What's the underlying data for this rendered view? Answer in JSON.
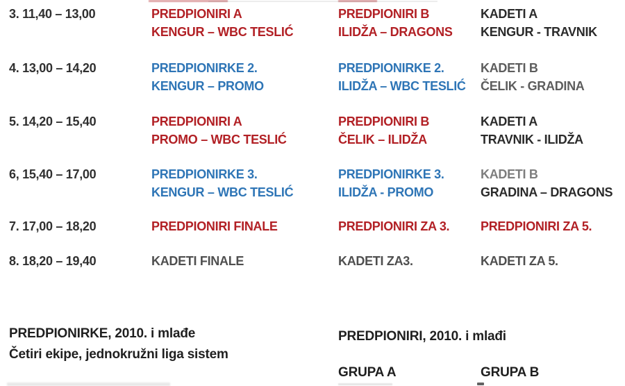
{
  "colors": {
    "red": "#b22025",
    "blue": "#2e75b6",
    "black": "#2b2b2b",
    "gray": "#5d5d5d",
    "lightgray": "#7d7d7d",
    "darkgray": "#4f4f4f"
  },
  "schedule": {
    "rows": [
      {
        "time": "3. 11,40 – 13,00",
        "cells": [
          {
            "lines": [
              {
                "text": "PREDPIONIRI A",
                "color": "red"
              },
              {
                "text": "KENGUR – WBC TESLIĆ",
                "color": "red"
              }
            ]
          },
          {
            "lines": [
              {
                "text": "PREDPIONIRI B",
                "color": "red"
              },
              {
                "text": "ILIDŽA – DRAGONS",
                "color": "red"
              }
            ]
          },
          {
            "lines": [
              {
                "text": "KADETI A",
                "color": "black"
              },
              {
                "text": "KENGUR - TRAVNIK",
                "color": "black"
              }
            ]
          }
        ]
      },
      {
        "time": "4. 13,00 – 14,20",
        "cells": [
          {
            "lines": [
              {
                "text": "PREDPIONIRKE 2.",
                "color": "blue"
              },
              {
                "text": "KENGUR – PROMO",
                "color": "blue"
              }
            ]
          },
          {
            "lines": [
              {
                "text": "PREDPIONIRKE 2.",
                "color": "blue"
              },
              {
                "text": "ILIDŽA – WBC TESLIĆ",
                "color": "blue"
              }
            ]
          },
          {
            "lines": [
              {
                "text": "KADETI B",
                "color": "gray"
              },
              {
                "text": "ČELIK - GRADINA",
                "color": "gray"
              }
            ]
          }
        ]
      },
      {
        "time": "5. 14,20 – 15,40",
        "cells": [
          {
            "lines": [
              {
                "text": "PREDPIONIRI A",
                "color": "red"
              },
              {
                "text": "PROMO – WBC TESLIĆ",
                "color": "red"
              }
            ]
          },
          {
            "lines": [
              {
                "text": "PREDPIONIRI B",
                "color": "red"
              },
              {
                "text": "ČELIK – ILIDŽA",
                "color": "red"
              }
            ]
          },
          {
            "lines": [
              {
                "text": "KADETI A",
                "color": "black"
              },
              {
                "text": "TRAVNIK - ILIDŽA",
                "color": "black"
              }
            ]
          }
        ]
      },
      {
        "time": "6, 15,40 – 17,00",
        "cells": [
          {
            "lines": [
              {
                "text": "PREDPIONIRKE 3.",
                "color": "blue"
              },
              {
                "text": "KENGUR – WBC TESLIĆ",
                "color": "blue"
              }
            ]
          },
          {
            "lines": [
              {
                "text": "PREDPIONIRKE 3.",
                "color": "blue"
              },
              {
                "text": "ILIDŽA - PROMO",
                "color": "blue"
              }
            ]
          },
          {
            "lines": [
              {
                "text": "KADETI B",
                "color": "lightgray"
              },
              {
                "text": "GRADINA – DRAGONS",
                "color": "black"
              }
            ]
          }
        ]
      },
      {
        "time": "7. 17,00 – 18,20",
        "cells": [
          {
            "lines": [
              {
                "text": "PREDPIONIRI FINALE",
                "color": "red"
              }
            ]
          },
          {
            "lines": [
              {
                "text": "PREDPIONIRI ZA 3.",
                "color": "red"
              }
            ]
          },
          {
            "lines": [
              {
                "text": "PREDPIONIRI ZA 5.",
                "color": "red"
              }
            ]
          }
        ]
      },
      {
        "time": "8. 18,20 – 19,40",
        "cells": [
          {
            "lines": [
              {
                "text": "KADETI FINALE",
                "color": "darkgray"
              }
            ]
          },
          {
            "lines": [
              {
                "text": "KADETI ZA3.",
                "color": "darkgray"
              }
            ]
          },
          {
            "lines": [
              {
                "text": "KADETI ZA 5.",
                "color": "darkgray"
              }
            ]
          }
        ]
      }
    ]
  },
  "footer": {
    "left": {
      "title": "PREDPIONIRKE, 2010. i mlađe",
      "subtitle": "Četiri ekipe, jednokružni liga sistem"
    },
    "right": {
      "title": "PREDPIONIRI, 2010. i mlađi",
      "group_a": "GRUPA A",
      "group_b": "GRUPA B"
    }
  }
}
